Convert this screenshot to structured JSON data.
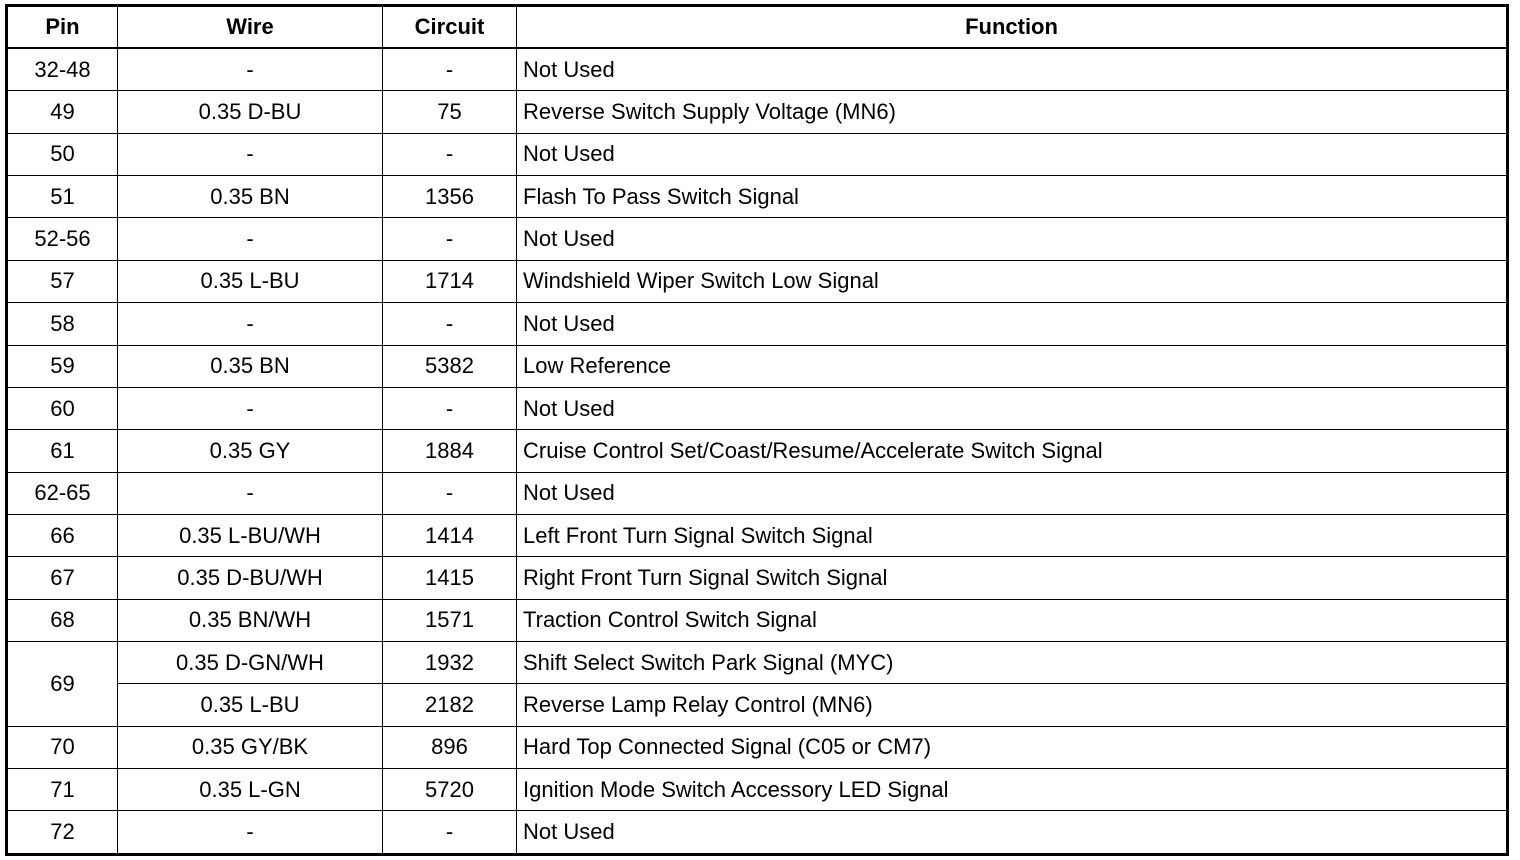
{
  "headers": {
    "pin": "Pin",
    "wire": "Wire",
    "circuit": "Circuit",
    "function": "Function"
  },
  "rows": [
    {
      "pin": "32-48",
      "wire": "-",
      "circuit": "-",
      "function": "Not Used"
    },
    {
      "pin": "49",
      "wire": "0.35 D-BU",
      "circuit": "75",
      "function": "Reverse Switch Supply Voltage (MN6)"
    },
    {
      "pin": "50",
      "wire": "-",
      "circuit": "-",
      "function": "Not Used"
    },
    {
      "pin": "51",
      "wire": "0.35 BN",
      "circuit": "1356",
      "function": "Flash To Pass Switch Signal"
    },
    {
      "pin": "52-56",
      "wire": "-",
      "circuit": "-",
      "function": "Not Used"
    },
    {
      "pin": "57",
      "wire": "0.35 L-BU",
      "circuit": "1714",
      "function": "Windshield Wiper Switch Low Signal"
    },
    {
      "pin": "58",
      "wire": "-",
      "circuit": "-",
      "function": "Not Used"
    },
    {
      "pin": "59",
      "wire": "0.35 BN",
      "circuit": "5382",
      "function": "Low Reference"
    },
    {
      "pin": "60",
      "wire": "-",
      "circuit": "-",
      "function": "Not Used"
    },
    {
      "pin": "61",
      "wire": "0.35 GY",
      "circuit": "1884",
      "function": "Cruise Control Set/Coast/Resume/Accelerate Switch Signal"
    },
    {
      "pin": "62-65",
      "wire": "-",
      "circuit": "-",
      "function": "Not Used"
    },
    {
      "pin": "66",
      "wire": "0.35 L-BU/WH",
      "circuit": "1414",
      "function": "Left Front Turn Signal Switch Signal"
    },
    {
      "pin": "67",
      "wire": "0.35 D-BU/WH",
      "circuit": "1415",
      "function": "Right Front Turn Signal Switch Signal"
    },
    {
      "pin": "68",
      "wire": "0.35 BN/WH",
      "circuit": "1571",
      "function": "Traction Control Switch Signal"
    },
    {
      "pin": "69",
      "wire": "0.35 D-GN/WH",
      "circuit": "1932",
      "function": "Shift Select Switch Park Signal (MYC)"
    },
    {
      "pin": "",
      "wire": "0.35 L-BU",
      "circuit": "2182",
      "function": "Reverse Lamp Relay Control (MN6)"
    },
    {
      "pin": "70",
      "wire": "0.35 GY/BK",
      "circuit": "896",
      "function": "Hard Top Connected Signal (C05 or CM7)"
    },
    {
      "pin": "71",
      "wire": "0.35 L-GN",
      "circuit": "5720",
      "function": "Ignition Mode Switch Accessory LED Signal"
    },
    {
      "pin": "72",
      "wire": "-",
      "circuit": "-",
      "function": "Not Used"
    }
  ]
}
